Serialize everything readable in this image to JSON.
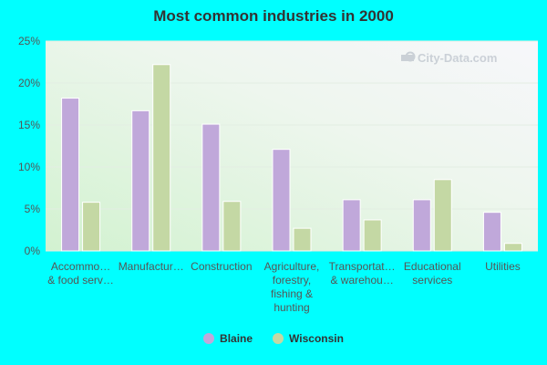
{
  "chart_data": {
    "type": "bar",
    "title": "Most common industries in 2000",
    "categories": [
      [
        "Accommo…",
        "& food serv…"
      ],
      [
        "Manufactur…"
      ],
      [
        "Construction"
      ],
      [
        "Agriculture,",
        "forestry,",
        "fishing &",
        "hunting"
      ],
      [
        "Transportat…",
        "& warehou…"
      ],
      [
        "Educational",
        "services"
      ],
      [
        "Utilities"
      ]
    ],
    "series": [
      {
        "name": "Blaine",
        "color": "#c0a8da",
        "values": [
          18.2,
          16.7,
          15.1,
          12.1,
          6.1,
          6.1,
          4.6
        ]
      },
      {
        "name": "Wisconsin",
        "color": "#c4d8a4",
        "values": [
          5.8,
          22.2,
          5.9,
          2.7,
          3.7,
          8.5,
          0.9
        ]
      }
    ],
    "ylim": [
      0,
      25
    ],
    "yticks": [
      "0%",
      "5%",
      "10%",
      "15%",
      "20%",
      "25%"
    ],
    "ytick_values": [
      0,
      5,
      10,
      15,
      20,
      25
    ],
    "legend_position": "bottom",
    "watermark": "City-Data.com"
  }
}
